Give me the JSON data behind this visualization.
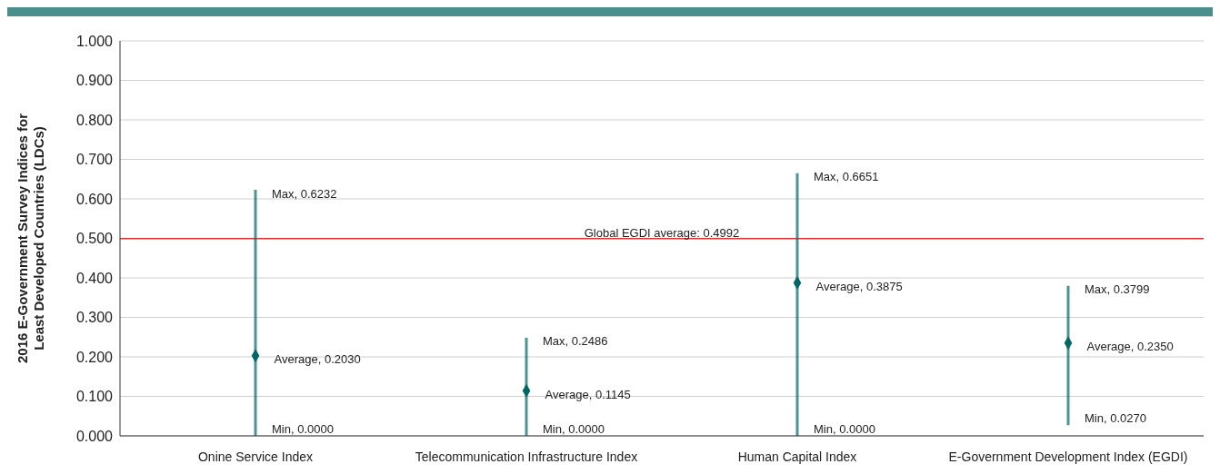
{
  "chart_data": {
    "type": "scatter",
    "ylabel": "2016 E-Government Survey Indices for Least Developed Countries (LDCs)",
    "categories": [
      "Onine Service Index",
      "Telecommunication Infrastructure Index",
      "Human Capital Index",
      "E-Government Development Index (EGDI)"
    ],
    "values": [
      0.203,
      0.1145,
      0.3875,
      0.235
    ],
    "value_labels": [
      "Average, 0.2030",
      "Average, 0.1145",
      "Average, 0.3875",
      "Average, 0.2350"
    ],
    "errors": [
      [
        0.0,
        0.6232
      ],
      [
        0.0,
        0.2486
      ],
      [
        0.0,
        0.6651
      ],
      [
        0.027,
        0.3799
      ]
    ],
    "color": "#006666",
    "marker": "diamond",
    "ylim": [
      0,
      1
    ],
    "yticks": [
      {
        "value": 0,
        "label": "0.000"
      },
      {
        "value": 0.1,
        "label": "0.100"
      },
      {
        "value": 0.2,
        "label": "0.200"
      },
      {
        "value": 0.3,
        "label": "0.300"
      },
      {
        "value": 0.4,
        "label": "0.400"
      },
      {
        "value": 0.5,
        "label": "0.500"
      },
      {
        "value": 0.6,
        "label": "0.600"
      },
      {
        "value": 0.7,
        "label": "0.700"
      },
      {
        "value": 0.8,
        "label": "0.800"
      },
      {
        "value": 0.9,
        "label": "0.900"
      },
      {
        "value": 1,
        "label": "1.000"
      }
    ],
    "grid": "y",
    "ref_lines": [
      {
        "axis": "y",
        "value": 0.4992,
        "label": "Global EGDI average: 0.4992",
        "color": "#e03030"
      }
    ],
    "annotations": [
      "Min, 0.0000",
      "Max, 0.6232",
      "Min, 0.0000",
      "Max, 0.2486",
      "Min, 0.0000",
      "Max, 0.6651",
      "Min, 0.0270",
      "Max, 0.3799"
    ]
  }
}
